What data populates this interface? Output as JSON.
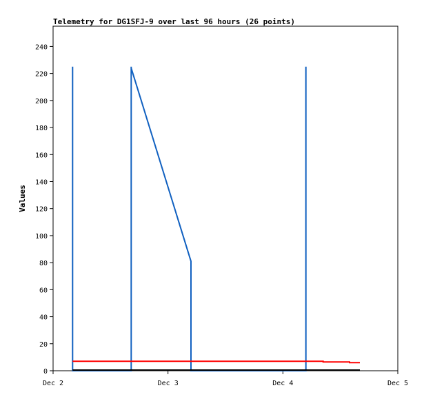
{
  "chart_data": {
    "type": "line",
    "title": "Telemetry for DG1SFJ-9 over last 96 hours (26 points)",
    "ylabel": "Values",
    "xlabel": "",
    "ylim": [
      0,
      255
    ],
    "xlim": [
      "Dec 2",
      "Dec 5"
    ],
    "y_ticks": [
      0,
      20,
      40,
      60,
      80,
      100,
      120,
      140,
      160,
      180,
      200,
      220,
      240
    ],
    "x_ticks": [
      "Dec 2",
      "Dec 3",
      "Dec 4",
      "Dec 5"
    ],
    "grid": false,
    "legend": "none",
    "series": [
      {
        "color": "#1060c0",
        "x": [
          2.17,
          2.17,
          2.17,
          2.68,
          2.68,
          2.68,
          3.2,
          3.2,
          3.2,
          4.2,
          4.2,
          4.2
        ],
        "y": [
          0,
          225,
          0,
          0,
          225,
          224,
          81,
          80,
          0,
          0,
          225,
          0
        ]
      },
      {
        "color": "#ff0000",
        "x": [
          2.17,
          4.35,
          4.35,
          4.58,
          4.58,
          4.67
        ],
        "y": [
          7,
          7,
          6.5,
          6.5,
          6,
          6
        ]
      },
      {
        "color": "#000000",
        "x": [
          2.17,
          4.67
        ],
        "y": [
          0.5,
          0.5
        ]
      }
    ]
  }
}
